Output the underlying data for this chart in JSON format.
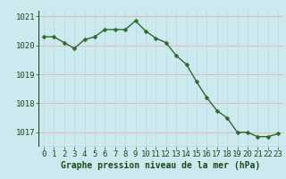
{
  "x": [
    0,
    1,
    2,
    3,
    4,
    5,
    6,
    7,
    8,
    9,
    10,
    11,
    12,
    13,
    14,
    15,
    16,
    17,
    18,
    19,
    20,
    21,
    22,
    23
  ],
  "y": [
    1020.3,
    1020.3,
    1020.1,
    1019.9,
    1020.2,
    1020.3,
    1020.55,
    1020.55,
    1020.55,
    1020.85,
    1020.5,
    1020.25,
    1020.1,
    1019.65,
    1019.35,
    1018.75,
    1018.2,
    1017.75,
    1017.5,
    1017.0,
    1017.0,
    1016.85,
    1016.85,
    1016.95
  ],
  "line_color": "#2d6a2d",
  "marker_color": "#2d6a2d",
  "bg_color": "#cce9f0",
  "grid_color_h": "#f0a0a0",
  "grid_color_v": "#b8d8e0",
  "xlabel": "Graphe pression niveau de la mer (hPa)",
  "xlabel_color": "#1a4a1a",
  "tick_color": "#1a4a1a",
  "ylim": [
    1016.5,
    1021.2
  ],
  "yticks": [
    1017,
    1018,
    1019,
    1020,
    1021
  ],
  "xticks": [
    0,
    1,
    2,
    3,
    4,
    5,
    6,
    7,
    8,
    9,
    10,
    11,
    12,
    13,
    14,
    15,
    16,
    17,
    18,
    19,
    20,
    21,
    22,
    23
  ],
  "marker_size": 2.5,
  "line_width": 1.0,
  "font_size_xlabel": 7.0,
  "font_size_ticks": 6.5
}
